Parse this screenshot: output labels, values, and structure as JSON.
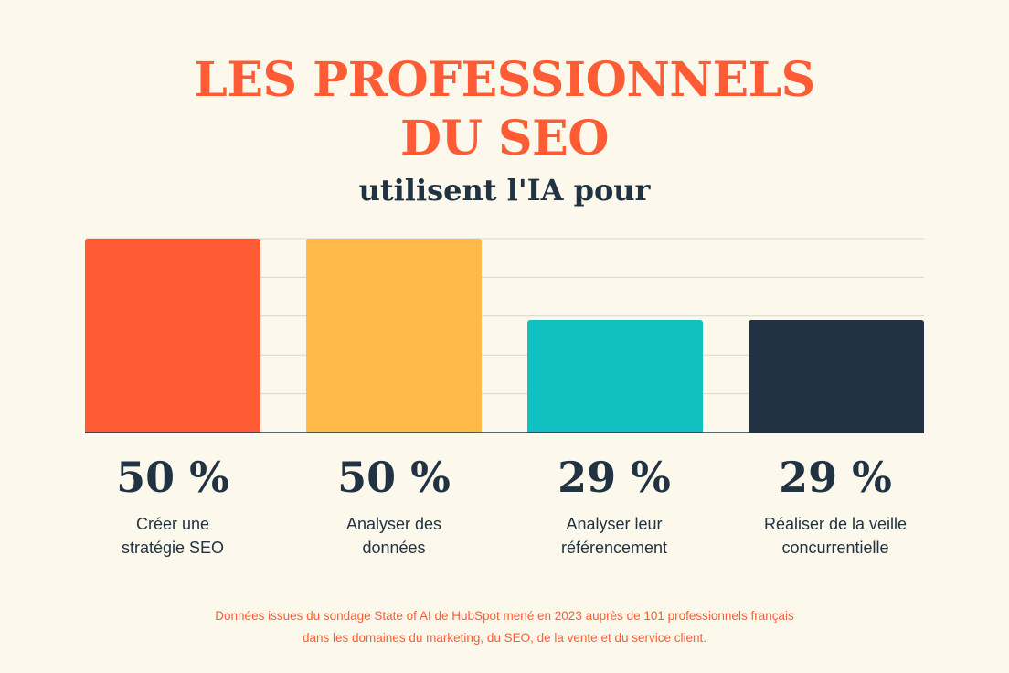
{
  "header": {
    "title_line1": "LES PROFESSIONNELS",
    "title_line2": "DU SEO",
    "subtitle": "utilisent l'IA pour"
  },
  "chart_data": {
    "type": "bar",
    "title": "LES PROFESSIONNELS DU SEO utilisent l'IA pour",
    "xlabel": "",
    "ylabel": "",
    "ylim": [
      0,
      50
    ],
    "grid": true,
    "categories": [
      "Créer une stratégie SEO",
      "Analyser des données",
      "Analyser leur référencement",
      "Réaliser de la veille concurrentielle"
    ],
    "category_lines": [
      [
        "Créer une",
        "stratégie SEO"
      ],
      [
        "Analyser des",
        "données"
      ],
      [
        "Analyser leur",
        "référencement"
      ],
      [
        "Réaliser de la veille",
        "concurrentielle"
      ]
    ],
    "values": [
      50,
      50,
      29,
      29
    ],
    "value_labels": [
      "50 %",
      "50 %",
      "29 %",
      "29 %"
    ],
    "colors": [
      "#ff5c35",
      "#ffba4a",
      "#11c1c1",
      "#213343"
    ]
  },
  "colors": {
    "background": "#fdf8ec",
    "accent": "#ff5c35",
    "text": "#213343",
    "grid": "#d9d6cf"
  },
  "footnote": {
    "line1": "Données issues du sondage State of AI de HubSpot mené en 2023 auprès de 101 professionnels français",
    "line2": "dans les domaines du marketing, du SEO, de la vente et du service client."
  }
}
